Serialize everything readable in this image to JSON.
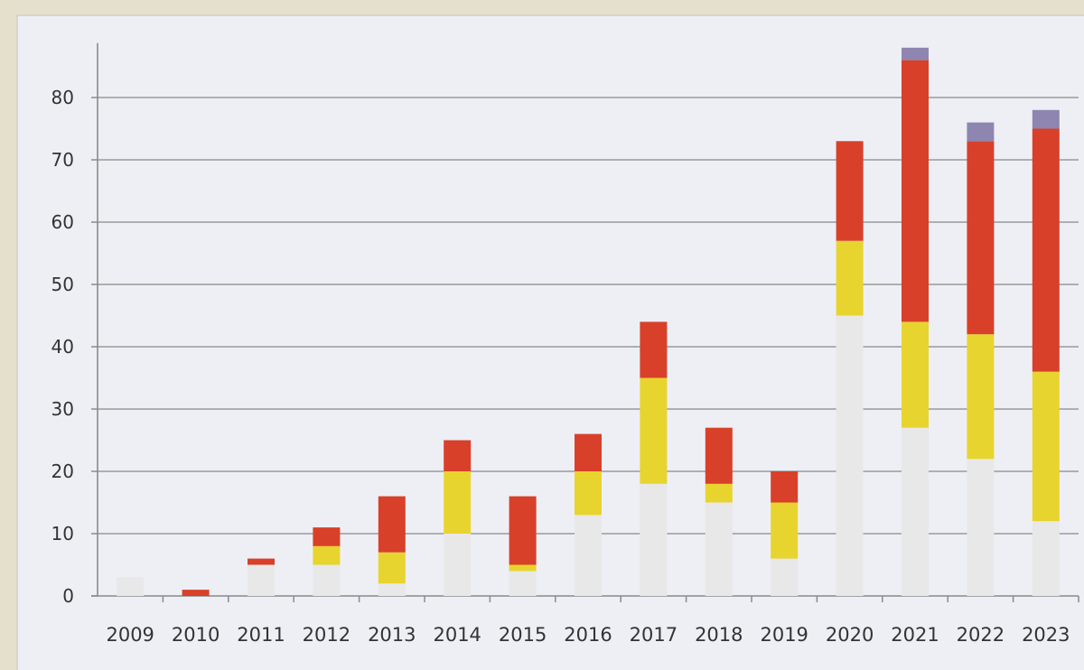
{
  "chart_data": {
    "type": "bar",
    "stacked": true,
    "categories": [
      "2009",
      "2010",
      "2011",
      "2012",
      "2013",
      "2014",
      "2015",
      "2016",
      "2017",
      "2018",
      "2019",
      "2020",
      "2021",
      "2022",
      "2023"
    ],
    "series": [
      {
        "color": "#e8e8e8",
        "values": [
          3,
          0,
          5,
          5,
          2,
          10,
          4,
          13,
          18,
          15,
          6,
          45,
          27,
          22,
          12
        ]
      },
      {
        "color": "#e8d42e",
        "values": [
          0,
          0,
          0,
          3,
          5,
          10,
          1,
          7,
          17,
          3,
          9,
          12,
          17,
          20,
          24
        ]
      },
      {
        "color": "#d8402a",
        "values": [
          0,
          1,
          1,
          3,
          9,
          5,
          11,
          6,
          9,
          9,
          5,
          16,
          42,
          31,
          39
        ]
      },
      {
        "color": "#8e86b0",
        "values": [
          0,
          0,
          0,
          0,
          0,
          0,
          0,
          0,
          0,
          0,
          0,
          0,
          2,
          3,
          3
        ]
      }
    ],
    "ylim": [
      0,
      88
    ],
    "yticks": [
      "0",
      "10",
      "20",
      "30",
      "40",
      "50",
      "60",
      "70",
      "80"
    ],
    "grid": true,
    "legend": "none",
    "title": "",
    "xlabel": "",
    "ylabel": ""
  }
}
